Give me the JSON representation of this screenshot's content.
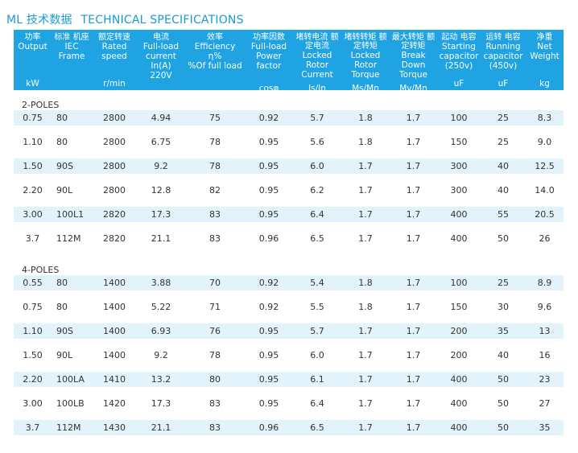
{
  "title": {
    "cn": "ML 技术数据",
    "en": "TECHNICAL SPECIFICATIONS"
  },
  "headers": [
    {
      "cn": "功率",
      "en": [
        "Output"
      ],
      "unit": "kW"
    },
    {
      "cn": "标准 机座",
      "en": [
        "IEC",
        "Frame"
      ],
      "unit": ""
    },
    {
      "cn": "额定转速",
      "en": [
        "Rated",
        "speed"
      ],
      "unit": "r/min"
    },
    {
      "cn": "电流",
      "en": [
        "Full-load",
        "current",
        "In(A)",
        "220V"
      ],
      "unit": ""
    },
    {
      "cn": "效率",
      "en": [
        "Efficiency",
        "η%",
        "%Of full load"
      ],
      "unit": ""
    },
    {
      "cn": "功率因数",
      "en": [
        "Full-load",
        "Power",
        "factor"
      ],
      "unit": "cosφ"
    },
    {
      "cn": "堵转电流 额定电流",
      "en": [
        "Locked",
        "Rotor",
        "Current"
      ],
      "unit": "Is/In"
    },
    {
      "cn": "堵转转矩 额定转矩",
      "en": [
        "Locked",
        "Rotor",
        "Torque"
      ],
      "unit": "Ms/Mn"
    },
    {
      "cn": "最大转矩 额定转矩",
      "en": [
        "Break",
        "Down",
        "Torque"
      ],
      "unit": "Mv/Mn"
    },
    {
      "cn": "起动 电容",
      "en": [
        "Starting",
        "capacitor",
        "(250v)"
      ],
      "unit": "uF"
    },
    {
      "cn": "运转 电容",
      "en": [
        "Running",
        "capacitor",
        "(450v)"
      ],
      "unit": "uF"
    },
    {
      "cn": "净重",
      "en": [
        "Net",
        "Weight"
      ],
      "unit": "kg"
    }
  ],
  "sections": [
    {
      "label": "2-POLES",
      "rows": [
        [
          "0.75",
          "80",
          "2800",
          "4.94",
          "75",
          "0.92",
          "5.7",
          "1.8",
          "1.7",
          "100",
          "25",
          "8.3"
        ],
        [
          "1.10",
          "80",
          "2800",
          "6.75",
          "78",
          "0.95",
          "5.6",
          "1.8",
          "1.7",
          "150",
          "25",
          "9.0"
        ],
        [
          "1.50",
          "90S",
          "2800",
          "9.2",
          "78",
          "0.95",
          "6.0",
          "1.7",
          "1.7",
          "300",
          "40",
          "12.5"
        ],
        [
          "2.20",
          "90L",
          "2800",
          "12.8",
          "82",
          "0.95",
          "6.2",
          "1.7",
          "1.7",
          "300",
          "40",
          "14.0"
        ],
        [
          "3.00",
          "100L1",
          "2820",
          "17.3",
          "83",
          "0.95",
          "6.4",
          "1.7",
          "1.7",
          "400",
          "55",
          "20.5"
        ],
        [
          "3.7",
          "112M",
          "2820",
          "21.1",
          "83",
          "0.96",
          "6.5",
          "1.7",
          "1.7",
          "400",
          "50",
          "26"
        ]
      ]
    },
    {
      "label": "4-POLES",
      "rows": [
        [
          "0.55",
          "80",
          "1400",
          "3.88",
          "70",
          "0.92",
          "5.4",
          "1.8",
          "1.7",
          "100",
          "25",
          "8.9"
        ],
        [
          "0.75",
          "80",
          "1400",
          "5.22",
          "71",
          "0.92",
          "5.5",
          "1.8",
          "1.7",
          "150",
          "30",
          "9.6"
        ],
        [
          "1.10",
          "90S",
          "1400",
          "6.93",
          "76",
          "0.95",
          "5.7",
          "1.7",
          "1.7",
          "200",
          "35",
          "13"
        ],
        [
          "1.50",
          "90L",
          "1400",
          "9.2",
          "78",
          "0.95",
          "6.0",
          "1.7",
          "1.7",
          "200",
          "40",
          "16"
        ],
        [
          "2.20",
          "100LA",
          "1410",
          "13.2",
          "80",
          "0.95",
          "6.1",
          "1.7",
          "1.7",
          "400",
          "50",
          "23"
        ],
        [
          "3.00",
          "100LB",
          "1420",
          "17.3",
          "83",
          "0.95",
          "6.4",
          "1.7",
          "1.7",
          "400",
          "50",
          "27"
        ],
        [
          "3.7",
          "112M",
          "1430",
          "21.1",
          "83",
          "0.96",
          "6.5",
          "1.7",
          "1.7",
          "400",
          "50",
          "35"
        ]
      ]
    }
  ],
  "colors": {
    "accent": "#1fa3e3",
    "title": "#1a9ad8",
    "stripe": "#e3f3fb"
  }
}
